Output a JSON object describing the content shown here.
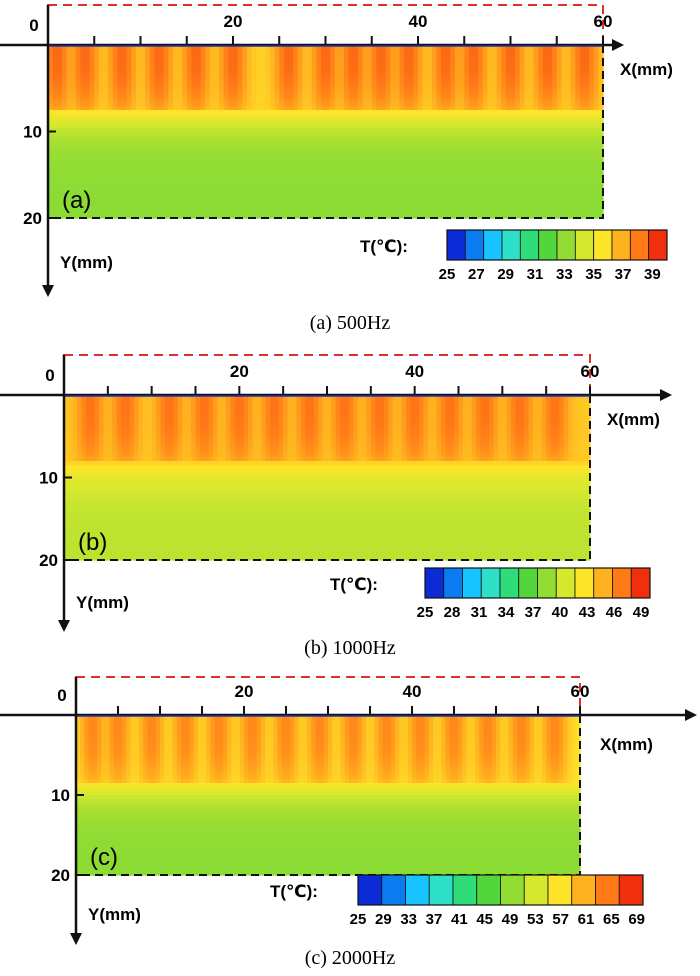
{
  "chart_data": [
    {
      "type": "heatmap",
      "panel_label": "(a)",
      "caption": "(a) 500Hz",
      "xlabel": "X(mm)",
      "ylabel": "Y(mm)",
      "x_ticks": [
        0,
        20,
        40,
        60
      ],
      "y_ticks": [
        0,
        10,
        20
      ],
      "xlim": [
        0,
        60
      ],
      "ylim": [
        0,
        20
      ],
      "hot_depth_mm": 7.5,
      "peak_x_mm": [
        1,
        4,
        8,
        12,
        16,
        20,
        26,
        30,
        33,
        36,
        39,
        43,
        46,
        50,
        54,
        58
      ],
      "colorbar": {
        "title": "T(℃):",
        "ticks": [
          25,
          27,
          29,
          31,
          33,
          35,
          37,
          39
        ],
        "range": [
          25,
          40
        ],
        "colors": [
          "#0a2bd6",
          "#0a7cf0",
          "#18c4ff",
          "#2fe0c8",
          "#2fdc7a",
          "#52d63b",
          "#93dc34",
          "#d6e82e",
          "#ffe52a",
          "#ffb21f",
          "#ff7a17",
          "#f0300c"
        ]
      },
      "approx_range_shown_C": [
        33,
        39
      ]
    },
    {
      "type": "heatmap",
      "panel_label": "(b)",
      "caption": "(b) 1000Hz",
      "xlabel": "X(mm)",
      "ylabel": "Y(mm)",
      "x_ticks": [
        0,
        20,
        40,
        60
      ],
      "y_ticks": [
        0,
        10,
        20
      ],
      "xlim": [
        0,
        60
      ],
      "ylim": [
        0,
        20
      ],
      "hot_depth_mm": 8,
      "peak_x_mm": [
        3,
        7,
        12,
        16,
        20,
        24,
        28,
        32,
        36,
        40,
        44,
        48,
        52,
        56
      ],
      "colorbar": {
        "title": "T(℃):",
        "ticks": [
          25,
          28,
          31,
          34,
          37,
          40,
          43,
          46,
          49
        ],
        "range": [
          25,
          50
        ],
        "colors": [
          "#0a2bd6",
          "#0a7cf0",
          "#18c4ff",
          "#2fe0c8",
          "#2fdc7a",
          "#52d63b",
          "#93dc34",
          "#d6e82e",
          "#ffe52a",
          "#ffb21f",
          "#ff7a17",
          "#f0300c"
        ]
      },
      "approx_range_shown_C": [
        40,
        48
      ]
    },
    {
      "type": "heatmap",
      "panel_label": "(c)",
      "caption": "(c) 2000Hz",
      "xlabel": "X(mm)",
      "ylabel": "Y(mm)",
      "x_ticks": [
        0,
        20,
        40,
        60
      ],
      "y_ticks": [
        0,
        10,
        20
      ],
      "xlim": [
        0,
        60
      ],
      "ylim": [
        0,
        20
      ],
      "hot_depth_mm": 8.5,
      "peak_x_mm": [
        2,
        5,
        9,
        13,
        17,
        21,
        25,
        29,
        33,
        37,
        41,
        45,
        49,
        53,
        57
      ],
      "colorbar": {
        "title": "T(℃):",
        "ticks": [
          25,
          29,
          33,
          37,
          41,
          45,
          49,
          53,
          57,
          61,
          65,
          69
        ],
        "range": [
          25,
          70
        ],
        "colors": [
          "#0a2bd6",
          "#0a7cf0",
          "#18c4ff",
          "#2fe0c8",
          "#2fdc7a",
          "#52d63b",
          "#93dc34",
          "#d6e82e",
          "#ffe52a",
          "#ffb21f",
          "#ff7a17",
          "#f0300c"
        ]
      },
      "approx_range_shown_C": [
        49,
        65
      ]
    }
  ]
}
